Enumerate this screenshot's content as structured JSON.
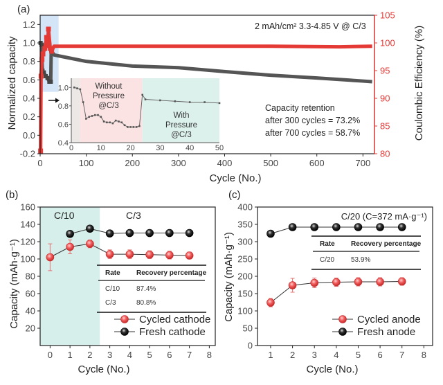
{
  "chart_data": [
    {
      "panel": "(a)",
      "type": "line",
      "annotation": "2 mAh/cm² 3.3-4.85 V @ C/3",
      "retention_text": [
        "Capacity retention",
        "after 300 cycles = 73.2%",
        "after 700 cycles = 58.7%"
      ],
      "xlabel": "Cycle (No.)",
      "ylabel": "Normalized  capacity",
      "y2label": "Coulombic Efficiency (%)",
      "xlim": [
        0,
        725
      ],
      "ylim": [
        -0.2,
        1.3
      ],
      "y2lim": [
        80,
        105
      ],
      "xticks": [
        0,
        100,
        200,
        300,
        400,
        500,
        600,
        700
      ],
      "yticks": [
        -0.2,
        0.0,
        0.2,
        0.4,
        0.6,
        0.8,
        1.0,
        1.2
      ],
      "y2ticks": [
        80,
        85,
        90,
        95,
        100,
        105
      ],
      "highlight_region": [
        0,
        40
      ],
      "series": [
        {
          "name": "Normalized capacity",
          "color": "#555555",
          "points": [
            [
              1,
              1.0
            ],
            [
              3,
              0.98
            ],
            [
              5,
              0.7
            ],
            [
              8,
              0.68
            ],
            [
              12,
              0.64
            ],
            [
              16,
              0.62
            ],
            [
              20,
              0.58
            ],
            [
              23,
              0.58
            ],
            [
              24,
              0.92
            ],
            [
              30,
              0.87
            ],
            [
              50,
              0.85
            ],
            [
              100,
              0.8
            ],
            [
              200,
              0.75
            ],
            [
              300,
              0.732
            ],
            [
              400,
              0.69
            ],
            [
              500,
              0.65
            ],
            [
              600,
              0.62
            ],
            [
              700,
              0.587
            ],
            [
              720,
              0.58
            ]
          ]
        },
        {
          "name": "Coulombic efficiency",
          "color": "#e53935",
          "points": [
            [
              1,
              80.5
            ],
            [
              2,
              94
            ],
            [
              4,
              97
            ],
            [
              6,
              98
            ],
            [
              10,
              99
            ],
            [
              14,
              101
            ],
            [
              16,
              99.5
            ],
            [
              18,
              102.5
            ],
            [
              22,
              99
            ],
            [
              25,
              98.5
            ],
            [
              30,
              99.4
            ],
            [
              100,
              99.4
            ],
            [
              300,
              99.4
            ],
            [
              500,
              99.4
            ],
            [
              650,
              99.3
            ],
            [
              720,
              99.4
            ]
          ]
        }
      ],
      "inset": {
        "xlim": [
          0,
          50
        ],
        "ylim": [
          0.4,
          1.1
        ],
        "xticks": [
          0,
          10,
          20,
          30,
          40,
          50
        ],
        "yticks": [
          0.4,
          0.6,
          0.8,
          1.0
        ],
        "region_without": {
          "range": [
            3,
            24
          ],
          "label": [
            "Without",
            "Pressure",
            "@C/3"
          ],
          "color": "#fbe3e3"
        },
        "region_with": {
          "range": [
            24,
            50
          ],
          "label": [
            "With",
            "Pressure",
            "@C/3"
          ],
          "color": "#ddf1ec"
        },
        "values": [
          [
            1,
            1.0
          ],
          [
            2,
            0.99
          ],
          [
            3,
            0.98
          ],
          [
            4,
            0.84
          ],
          [
            5,
            0.66
          ],
          [
            6,
            0.68
          ],
          [
            7,
            0.69
          ],
          [
            8,
            0.7
          ],
          [
            9,
            0.7
          ],
          [
            10,
            0.68
          ],
          [
            11,
            0.63
          ],
          [
            12,
            0.62
          ],
          [
            13,
            0.62
          ],
          [
            14,
            0.61
          ],
          [
            15,
            0.64
          ],
          [
            16,
            0.63
          ],
          [
            17,
            0.62
          ],
          [
            18,
            0.59
          ],
          [
            19,
            0.57
          ],
          [
            20,
            0.57
          ],
          [
            21,
            0.57
          ],
          [
            22,
            0.57
          ],
          [
            23,
            0.58
          ],
          [
            24,
            0.92
          ],
          [
            25,
            0.87
          ],
          [
            30,
            0.86
          ],
          [
            35,
            0.85
          ],
          [
            40,
            0.84
          ],
          [
            45,
            0.84
          ],
          [
            50,
            0.83
          ]
        ]
      }
    },
    {
      "panel": "(b)",
      "type": "line",
      "xlabel": "Cycle (No.)",
      "ylabel": "Capacity (mAh·g⁻¹)",
      "xlim": [
        -0.5,
        8.3
      ],
      "ylim": [
        0,
        160
      ],
      "xticks": [
        0,
        1,
        2,
        3,
        4,
        5,
        6,
        7,
        8
      ],
      "yticks": [
        20,
        40,
        60,
        80,
        100,
        120,
        140,
        160
      ],
      "region_labels": [
        "C/10",
        "C/3"
      ],
      "region_split": 2.5,
      "series": [
        {
          "name": "Cycled cathode",
          "color": "#e53935",
          "x": [
            0,
            1,
            2,
            3,
            4,
            5,
            6,
            7
          ],
          "values": [
            102,
            114,
            117.5,
            105.5,
            105.5,
            105,
            104.5,
            104
          ],
          "errors": [
            15.5,
            8,
            4.5,
            5,
            5,
            4.5,
            4.5,
            4
          ]
        },
        {
          "name": "Fresh cathode",
          "color": "#111111",
          "x": [
            1,
            2,
            3,
            4,
            5,
            6,
            7
          ],
          "values": [
            129,
            135,
            129.5,
            130,
            130,
            130,
            130
          ]
        }
      ],
      "table": {
        "headers": [
          "Rate",
          "Recovery percentage"
        ],
        "rows": [
          [
            "C/10",
            "87.4%"
          ],
          [
            "C/3",
            "80.8%"
          ]
        ]
      }
    },
    {
      "panel": "(c)",
      "type": "line",
      "annotation": "C/20 (C=372 mA·g⁻¹)",
      "xlabel": "Cycle (No.)",
      "ylabel": "Capacity (mAh·g⁻¹)",
      "xlim": [
        0.4,
        8.4
      ],
      "ylim": [
        0,
        400
      ],
      "xticks": [
        1,
        2,
        3,
        4,
        5,
        6,
        7,
        8
      ],
      "yticks": [
        0,
        50,
        100,
        150,
        200,
        250,
        300,
        350,
        400
      ],
      "series": [
        {
          "name": "Cycled anode",
          "color": "#e53935",
          "x": [
            1,
            2,
            3,
            4,
            5,
            6,
            7
          ],
          "values": [
            124,
            174,
            181,
            183,
            184,
            184,
            185
          ],
          "errors": [
            12,
            20,
            14,
            12,
            12,
            12,
            11
          ]
        },
        {
          "name": "Fresh anode",
          "color": "#111111",
          "x": [
            1,
            2,
            3,
            4,
            5,
            6,
            7
          ],
          "values": [
            323,
            342,
            342,
            342,
            342,
            342,
            342
          ]
        }
      ],
      "table": {
        "headers": [
          "Rate",
          "Recovery percentage"
        ],
        "rows": [
          [
            "C/20",
            "53.9%"
          ]
        ]
      }
    }
  ]
}
